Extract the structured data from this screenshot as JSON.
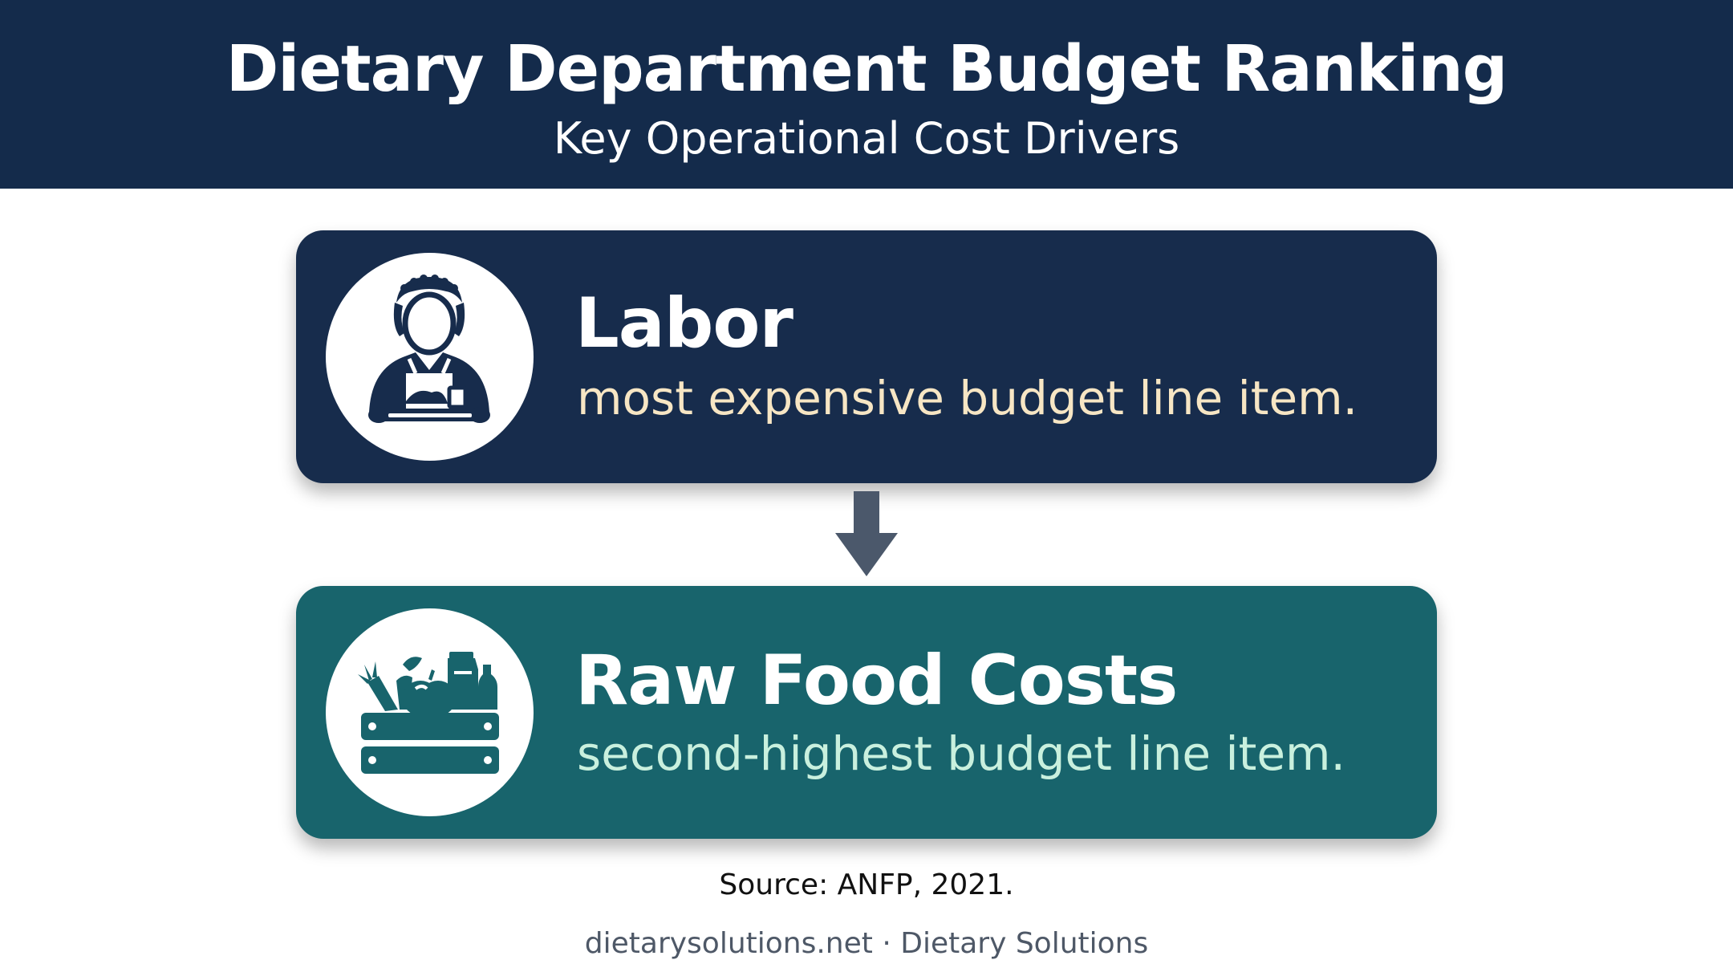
{
  "header": {
    "title": "Dietary Department Budget Ranking",
    "subtitle": "Key Operational Cost Drivers"
  },
  "colors": {
    "header_bg": "#142b4b",
    "labor_card": "#172c4c",
    "food_card": "#18646c",
    "labor_desc_text": "#f7e6c4",
    "food_desc_text": "#c9f0de",
    "arrow": "#4b586b"
  },
  "cards": [
    {
      "title": "Labor",
      "description": "most expensive budget line item.",
      "icon": "food-service-worker-icon"
    },
    {
      "title": "Raw Food Costs",
      "description": "second-highest budget line item.",
      "icon": "produce-crate-icon"
    }
  ],
  "connector_icon": "arrow-down-icon",
  "source": "Source: ANFP, 2021.",
  "footer": "dietarysolutions.net · Dietary Solutions"
}
